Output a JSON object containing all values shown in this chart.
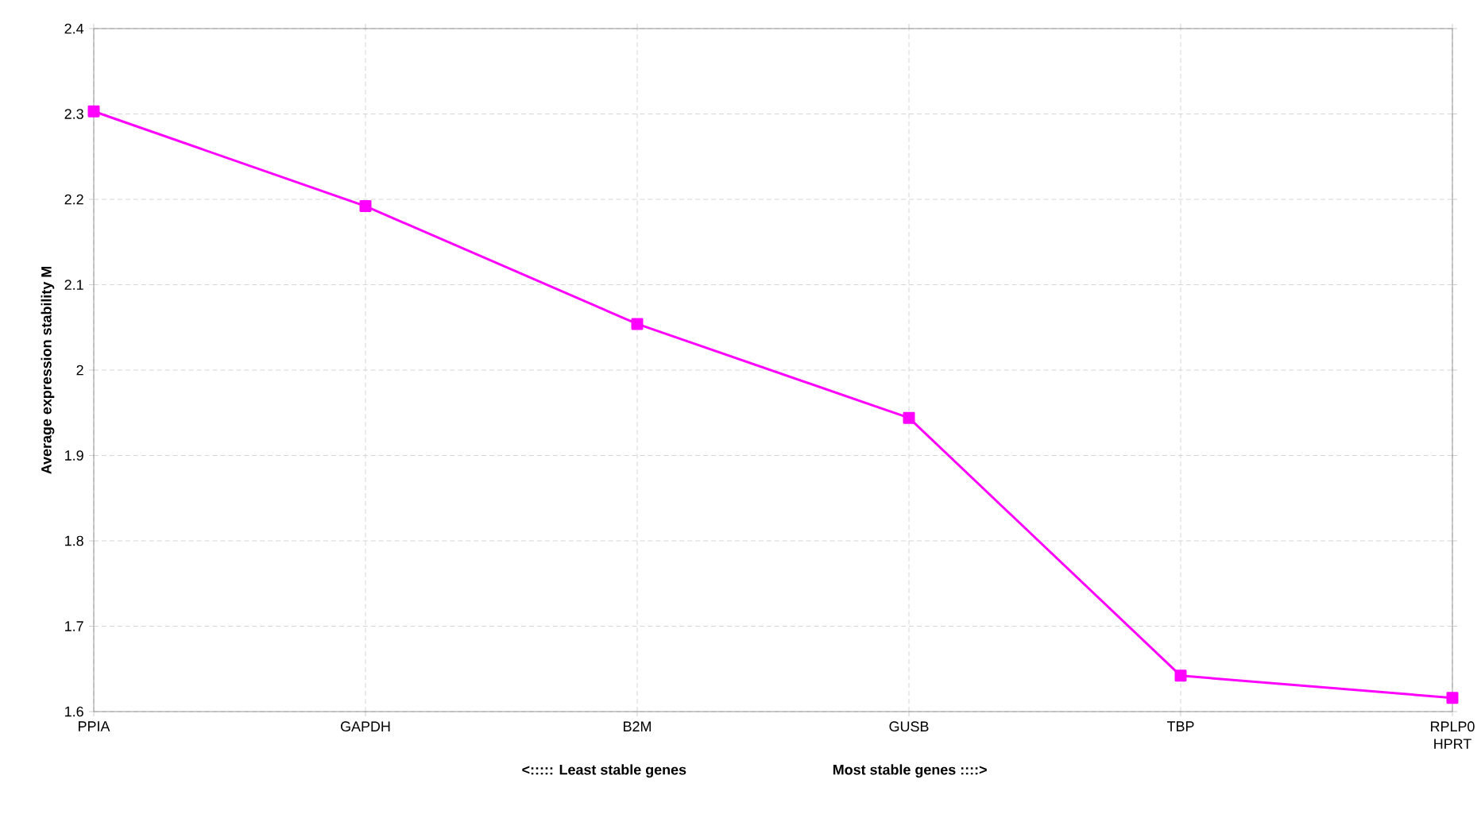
{
  "chart_data": {
    "type": "line",
    "ylabel": "Average expression stability M",
    "xlabel": "<::::: Least stable genes",
    "annotations": [
      "Most stable genes ::::>"
    ],
    "categories": [
      "PPIA",
      "GAPDH",
      "B2M",
      "GUSB",
      "TBP",
      "RPLP0 HPRT"
    ],
    "series": [
      {
        "color": "#ff00ff",
        "values": [
          2.303,
          2.192,
          2.054,
          1.944,
          1.642,
          1.616
        ]
      }
    ],
    "ylim": [
      1.6,
      2.4
    ],
    "yticks": [
      1.6,
      1.7,
      1.8,
      1.9,
      2,
      2.1,
      2.2,
      2.3,
      2.4
    ],
    "grid": true,
    "marker": "square",
    "line_style": "solid"
  }
}
